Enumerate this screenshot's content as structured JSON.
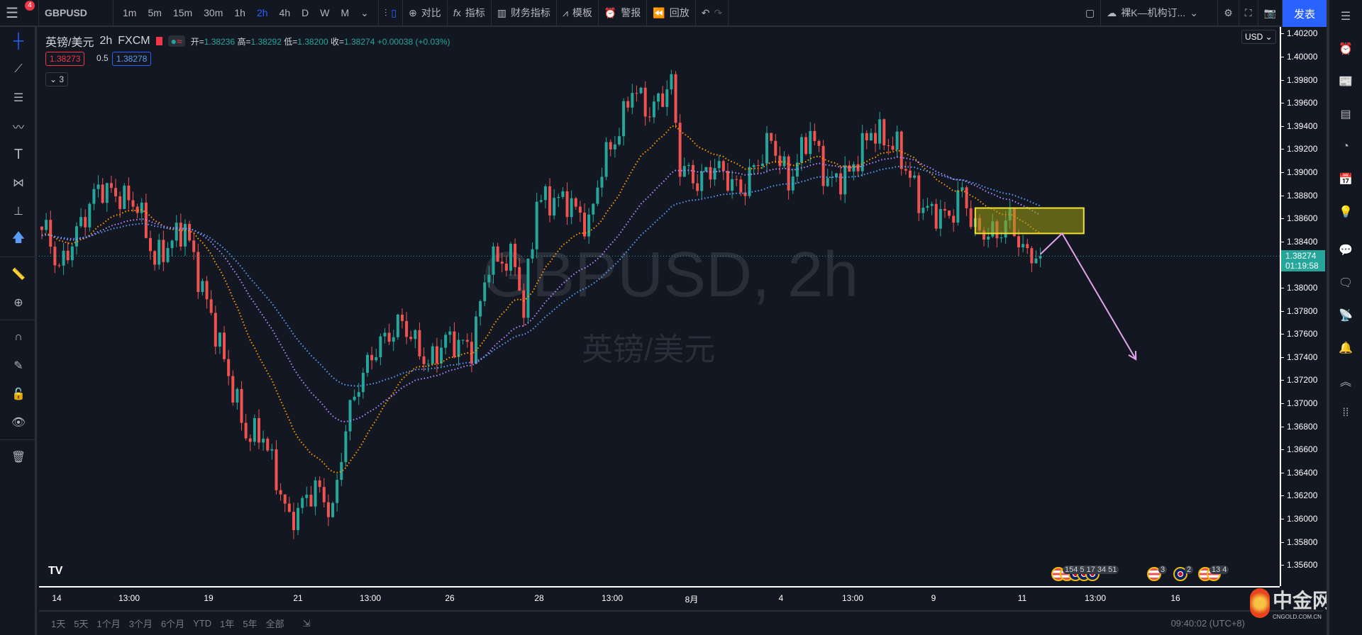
{
  "toolbar": {
    "menu_badge": "4",
    "symbol": "GBPUSD",
    "timeframes": [
      "1m",
      "5m",
      "15m",
      "30m",
      "1h",
      "2h",
      "4h",
      "D",
      "W",
      "M"
    ],
    "active_timeframe": "2h",
    "compare": "对比",
    "indicators": "指标",
    "financials": "财务指标",
    "templates": "模板",
    "alerts": "警报",
    "replay": "回放",
    "layout_name": "裸K—机构订...",
    "publish": "发表"
  },
  "legend": {
    "name": "英镑/美元",
    "interval": "2h",
    "exchange": "FXCM",
    "open_label": "开=",
    "open": "1.38236",
    "high_label": "高=",
    "high": "1.38292",
    "low_label": "低=",
    "low": "1.38200",
    "close_label": "收=",
    "close": "1.38274",
    "change": "+0.00038 (+0.03%)",
    "bid": "1.38273",
    "spread": "0.5",
    "ask": "1.38278",
    "collapse": "3"
  },
  "watermark": {
    "line1": "GBPUSD, 2h",
    "line2": "英镑/美元"
  },
  "price_axis": {
    "currency": "USD",
    "labels": [
      "1.40200",
      "1.40000",
      "1.39800",
      "1.39600",
      "1.39400",
      "1.39200",
      "1.39000",
      "1.38800",
      "1.38600",
      "1.38400",
      "1.38000",
      "1.37800",
      "1.37600",
      "1.37400",
      "1.37200",
      "1.37000",
      "1.36800",
      "1.36600",
      "1.36400",
      "1.36200",
      "1.36000",
      "1.35800",
      "1.35600"
    ],
    "current_price": "1.38274",
    "countdown": "01:19:58"
  },
  "time_axis": {
    "labels": [
      "14",
      "13:00",
      "19",
      "21",
      "13:00",
      "26",
      "28",
      "13:00",
      "8月",
      "4",
      "13:00",
      "9",
      "11",
      "13:00",
      "16"
    ]
  },
  "bottom": {
    "ranges": [
      "1天",
      "5天",
      "1个月",
      "3个月",
      "6个月",
      "YTD",
      "1年",
      "5年",
      "全部"
    ],
    "clock": "09:40:02 (UTC+8)"
  },
  "events": [
    {
      "flags": [
        "us",
        "us",
        "uk",
        "uk",
        "uk"
      ],
      "count": "154 5 17 34 51"
    },
    {
      "flags": [
        "us"
      ],
      "count": "3"
    },
    {
      "flags": [
        "uk"
      ],
      "count": "2"
    },
    {
      "flags": [
        "us",
        "us"
      ],
      "count": "13 4"
    }
  ],
  "logo": {
    "text": "中金网",
    "sub": "CNGOLD.COM.CN"
  },
  "chart_data": {
    "type": "candlestick",
    "symbol": "GBPUSD",
    "interval": "2h",
    "ylim": [
      1.354,
      1.4027
    ],
    "keypoints": [
      [
        0,
        1.385
      ],
      [
        1,
        1.38496
      ],
      [
        4,
        1.38157
      ],
      [
        13,
        1.38872
      ],
      [
        22,
        1.38721
      ],
      [
        26,
        1.38233
      ],
      [
        33,
        1.38533
      ],
      [
        35,
        1.38233
      ],
      [
        40,
        1.37631
      ],
      [
        47,
        1.36728
      ],
      [
        51,
        1.36728
      ],
      [
        57,
        1.35976
      ],
      [
        63,
        1.36277
      ],
      [
        67,
        1.36051
      ],
      [
        70,
        1.36804
      ],
      [
        73,
        1.3718
      ],
      [
        77,
        1.3748
      ],
      [
        83,
        1.37706
      ],
      [
        89,
        1.3733
      ],
      [
        93,
        1.37556
      ],
      [
        99,
        1.3748
      ],
      [
        103,
        1.38233
      ],
      [
        109,
        1.38233
      ],
      [
        111,
        1.37781
      ],
      [
        114,
        1.38759
      ],
      [
        121,
        1.38759
      ],
      [
        126,
        1.38533
      ],
      [
        129,
        1.3906
      ],
      [
        133,
        1.39361
      ],
      [
        136,
        1.39737
      ],
      [
        140,
        1.39511
      ],
      [
        145,
        1.39774
      ],
      [
        147,
        1.3906
      ],
      [
        151,
        1.38909
      ],
      [
        155,
        1.3906
      ],
      [
        161,
        1.38834
      ],
      [
        168,
        1.39285
      ],
      [
        172,
        1.38909
      ],
      [
        177,
        1.39361
      ],
      [
        181,
        1.38909
      ],
      [
        186,
        1.38985
      ],
      [
        191,
        1.39361
      ],
      [
        197,
        1.3921
      ],
      [
        203,
        1.38684
      ],
      [
        209,
        1.38609
      ],
      [
        212,
        1.38834
      ],
      [
        215,
        1.38496
      ],
      [
        220,
        1.38458
      ],
      [
        223,
        1.38609
      ],
      [
        226,
        1.38308
      ],
      [
        230,
        1.38274
      ]
    ],
    "ema_periods": [
      20,
      40,
      60
    ],
    "ema_colors": [
      "#ff9800",
      "#b388ff",
      "#5b9cf6"
    ],
    "up_color": "#26a69a",
    "down_color": "#ef5350",
    "zone": {
      "from_bar": 215,
      "to_bar": 240,
      "top": 1.3869,
      "bottom": 1.3847,
      "color": "#f0e130"
    },
    "projection": [
      [
        230,
        1.3829
      ],
      [
        235,
        1.3847
      ],
      [
        252,
        1.3738
      ]
    ]
  }
}
